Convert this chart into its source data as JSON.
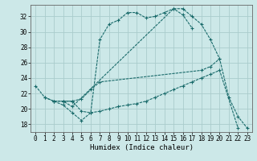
{
  "xlabel": "Humidex (Indice chaleur)",
  "xlim": [
    -0.5,
    23.5
  ],
  "ylim": [
    17,
    33.5
  ],
  "yticks": [
    18,
    20,
    22,
    24,
    26,
    28,
    30,
    32
  ],
  "xticks": [
    0,
    1,
    2,
    3,
    4,
    5,
    6,
    7,
    8,
    9,
    10,
    11,
    12,
    13,
    14,
    15,
    16,
    17,
    18,
    19,
    20,
    21,
    22,
    23
  ],
  "bg_color": "#cce8e8",
  "grid_color": "#aacccc",
  "line_color": "#1a6b6b",
  "lines": [
    {
      "x": [
        0,
        1,
        2,
        3,
        4,
        5,
        6,
        7,
        8,
        9,
        10,
        11,
        12,
        13,
        14,
        15,
        16,
        17
      ],
      "y": [
        23,
        21.5,
        21,
        20.5,
        19.5,
        18.5,
        19.5,
        29.0,
        31.0,
        31.5,
        32.5,
        32.5,
        31.8,
        32.0,
        32.5,
        33.0,
        32.2,
        30.5
      ]
    },
    {
      "x": [
        2,
        3,
        4,
        15,
        16,
        17,
        18,
        19,
        20,
        21,
        22,
        23
      ],
      "y": [
        21.0,
        21.0,
        20.3,
        33.0,
        33.0,
        32.0,
        31.0,
        29.0,
        26.5,
        21.5,
        19.0,
        17.5
      ]
    },
    {
      "x": [
        1,
        2,
        3,
        4,
        5,
        6,
        7,
        18,
        19,
        20
      ],
      "y": [
        21.5,
        21.0,
        21.0,
        21.0,
        21.3,
        22.5,
        23.5,
        25.0,
        25.5,
        26.5
      ]
    },
    {
      "x": [
        3,
        4,
        5,
        6,
        7,
        8,
        9,
        10,
        11,
        12,
        13,
        14,
        15,
        16,
        17,
        18,
        19,
        20,
        22
      ],
      "y": [
        21.0,
        21.0,
        19.7,
        19.5,
        19.7,
        20.0,
        20.3,
        20.5,
        20.7,
        21.0,
        21.5,
        22.0,
        22.5,
        23.0,
        23.5,
        24.0,
        24.5,
        25.0,
        17.5
      ]
    }
  ]
}
